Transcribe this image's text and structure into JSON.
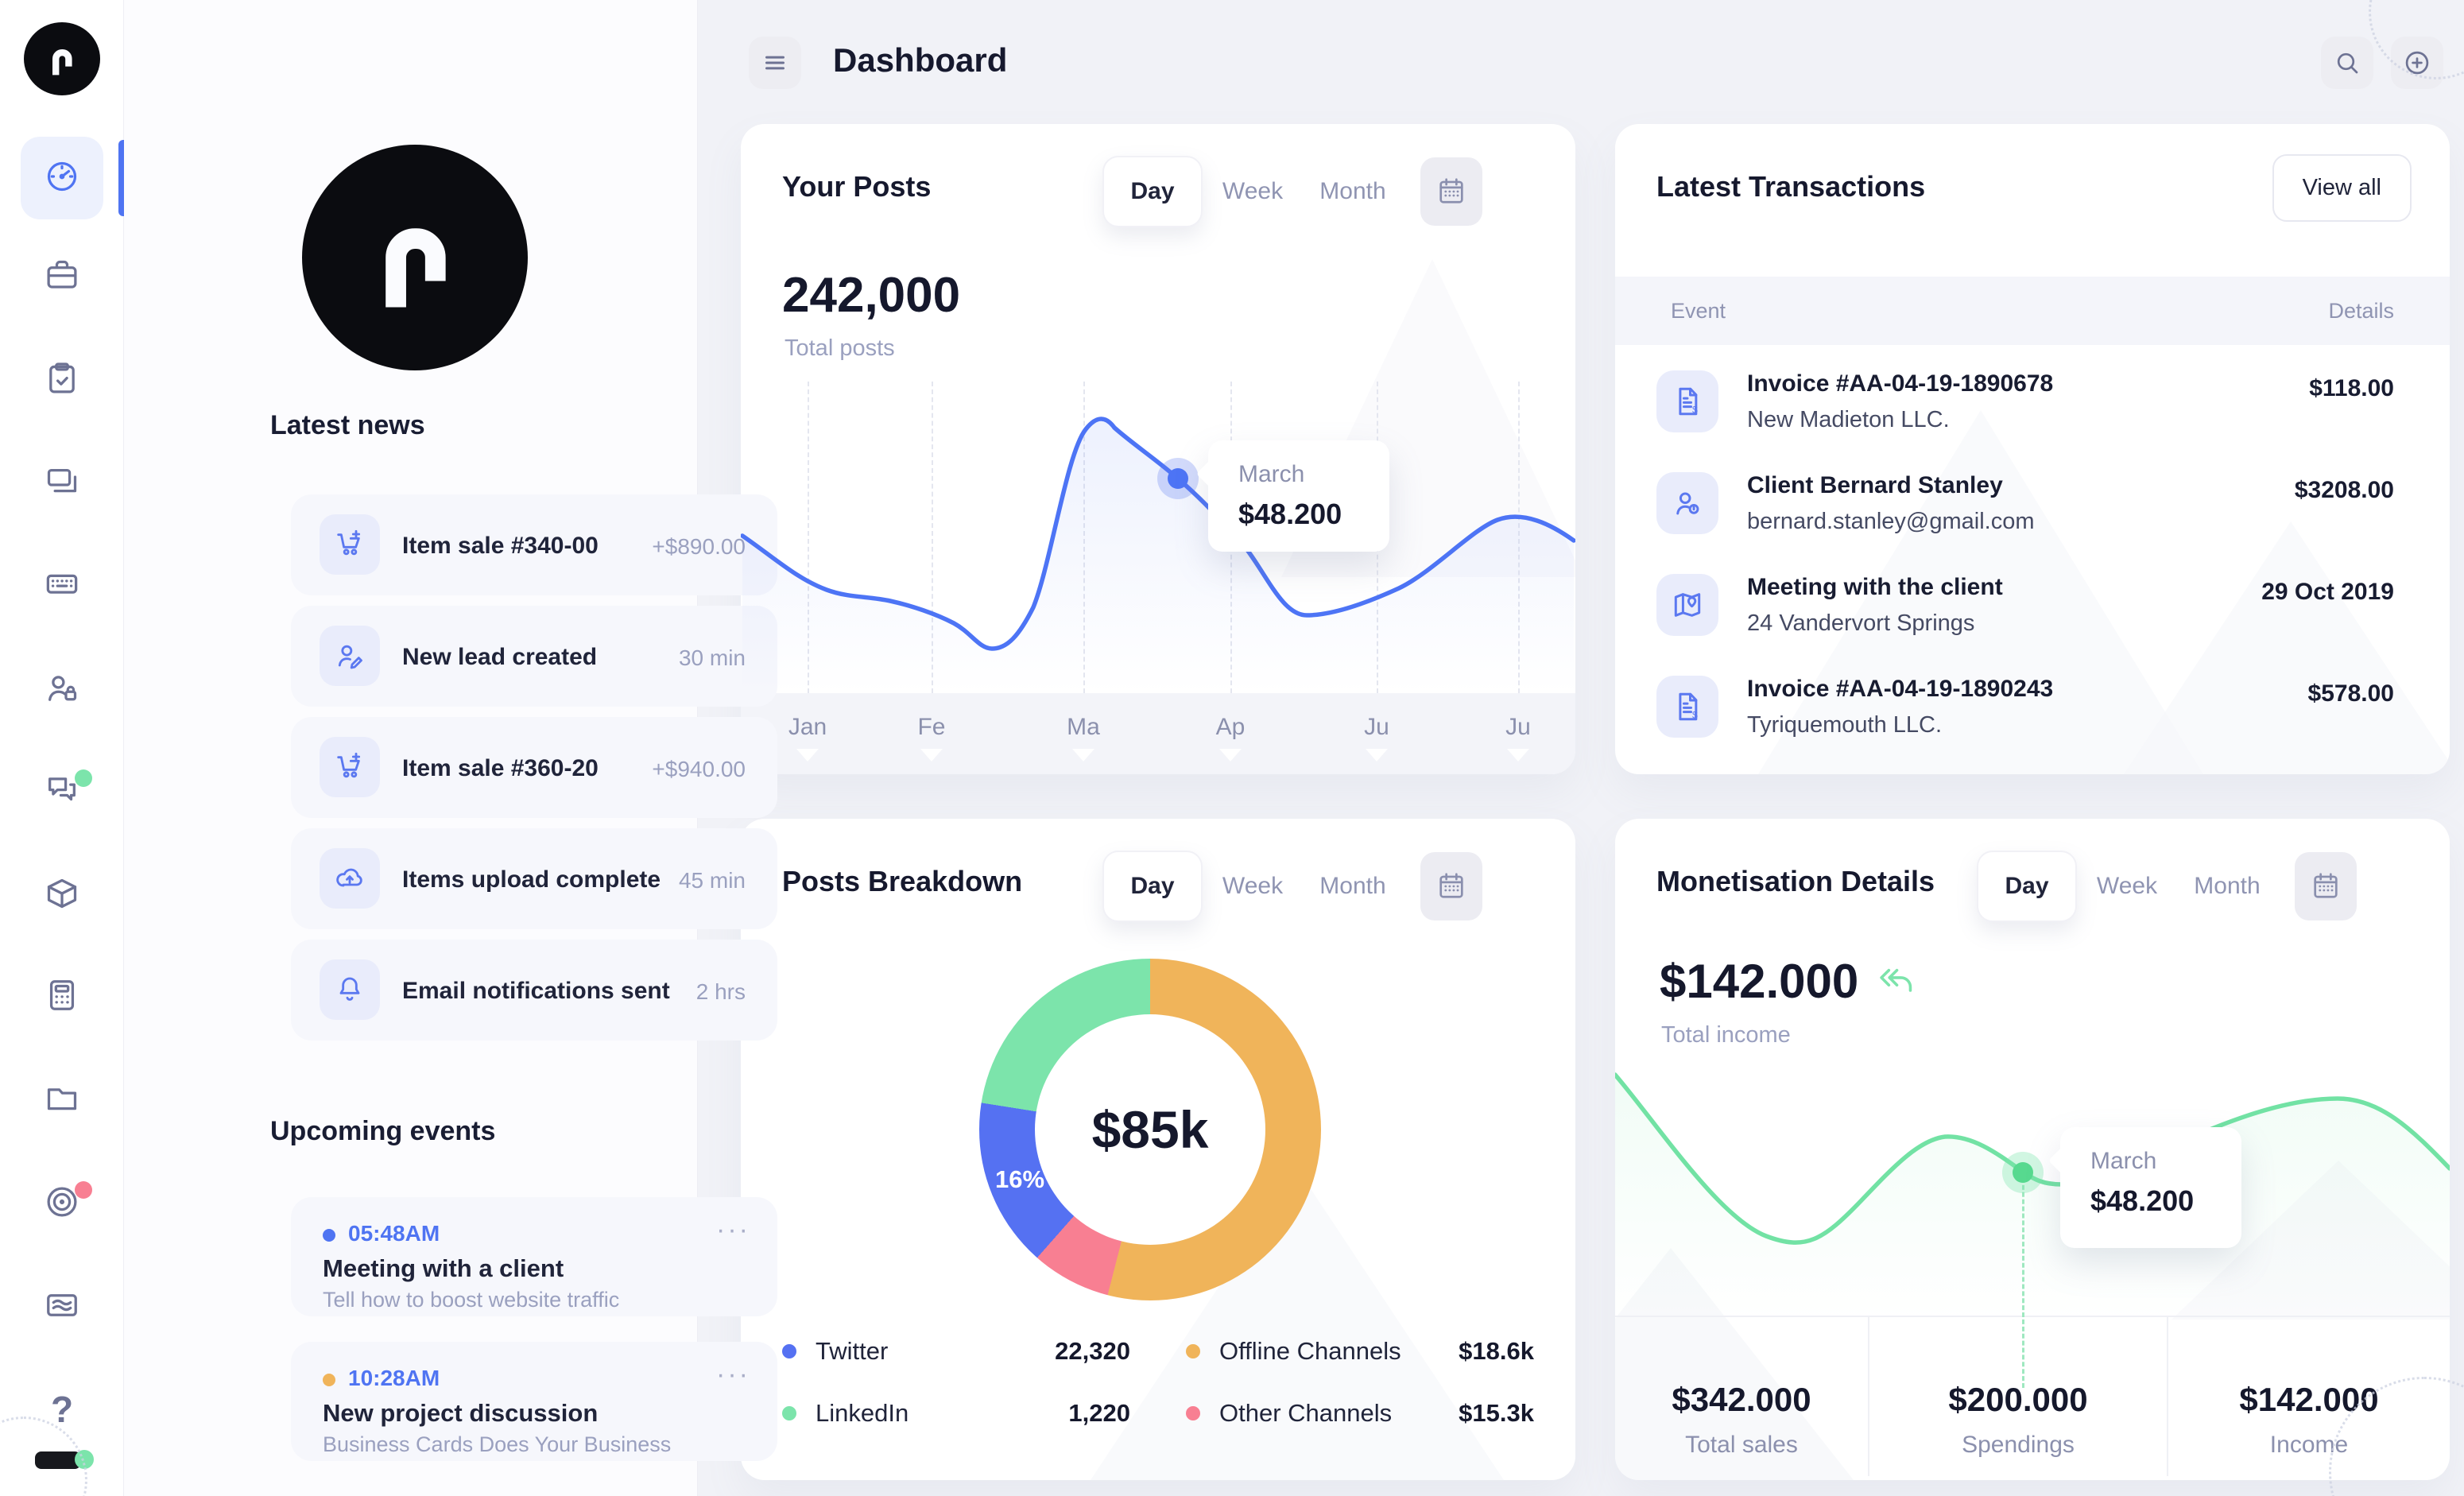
{
  "header": {
    "title": "Dashboard"
  },
  "sidebar": {
    "items": [
      {
        "id": "dashboard",
        "icon": "gauge",
        "active": true
      },
      {
        "id": "jobs",
        "icon": "briefcase"
      },
      {
        "id": "tasks",
        "icon": "clipboard-check"
      },
      {
        "id": "slides",
        "icon": "layers"
      },
      {
        "id": "keyboard",
        "icon": "keyboard"
      },
      {
        "id": "clients",
        "icon": "user-lock"
      },
      {
        "id": "messages",
        "icon": "chat",
        "badge": "#7ce4ab"
      },
      {
        "id": "products",
        "icon": "box"
      },
      {
        "id": "billing",
        "icon": "calculator"
      },
      {
        "id": "files",
        "icon": "folder"
      },
      {
        "id": "goals",
        "icon": "target",
        "badge": "#f87f92"
      },
      {
        "id": "newsletter",
        "icon": "mail-wave"
      },
      {
        "id": "help",
        "icon": "question"
      }
    ],
    "user": {
      "status_color": "#7ce4ab"
    }
  },
  "news": {
    "heading": "Latest news",
    "items": [
      {
        "icon": "cart-plus",
        "title": "Item sale #340-00",
        "meta": "+$890.00"
      },
      {
        "icon": "user-edit",
        "title": "New lead created",
        "meta": "30 min"
      },
      {
        "icon": "cart-plus",
        "title": "Item sale #360-20",
        "meta": "+$940.00"
      },
      {
        "icon": "cloud-upload",
        "title": "Items upload complete",
        "meta": "45 min"
      },
      {
        "icon": "bell",
        "title": "Email notifications sent",
        "meta": "2 hrs"
      }
    ]
  },
  "events": {
    "heading": "Upcoming events",
    "menu": "···",
    "items": [
      {
        "dot": "#4f74f2",
        "time": "05:48AM",
        "title": "Meeting with a client",
        "subtitle": "Tell how to boost website traffic"
      },
      {
        "dot": "#f0b45a",
        "time": "10:28AM",
        "title": "New project discussion",
        "subtitle": "Business Cards Does Your Business"
      }
    ]
  },
  "your_posts": {
    "title": "Your Posts",
    "tabs": [
      "Day",
      "Week",
      "Month"
    ],
    "active_tab": "Day",
    "total": "242,000",
    "total_label": "Total posts",
    "months": [
      "Jan",
      "Fe",
      "Ma",
      "Ap",
      "Ju",
      "Ju"
    ],
    "tooltip": {
      "label": "March",
      "value": "$48.200"
    }
  },
  "transactions": {
    "title": "Latest Transactions",
    "view_all": "View all",
    "columns": {
      "event": "Event",
      "details": "Details"
    },
    "rows": [
      {
        "icon": "invoice",
        "title": "Invoice #AA-04-19-1890678",
        "subtitle": "New Madieton LLC.",
        "value": "$118.00"
      },
      {
        "icon": "user-badge",
        "title": "Client Bernard Stanley",
        "subtitle": "bernard.stanley@gmail.com",
        "value": "$3208.00"
      },
      {
        "icon": "map-pin",
        "title": "Meeting with the client",
        "subtitle": "24 Vandervort Springs",
        "value": "29 Oct 2019"
      },
      {
        "icon": "invoice",
        "title": "Invoice #AA-04-19-1890243",
        "subtitle": "Tyriquemouth LLC.",
        "value": "$578.00"
      }
    ]
  },
  "breakdown": {
    "title": "Posts Breakdown",
    "tabs": [
      "Day",
      "Week",
      "Month"
    ],
    "active_tab": "Day",
    "center_value": "$85k",
    "slice_label": "16%",
    "legend": [
      {
        "color": "#5571f2",
        "label": "Twitter",
        "value": "22,320"
      },
      {
        "color": "#f0b45a",
        "label": "Offline Channels",
        "value": "$18.6k"
      },
      {
        "color": "#7ce4ab",
        "label": "LinkedIn",
        "value": "1,220"
      },
      {
        "color": "#f87f92",
        "label": "Other Channels",
        "value": "$15.3k"
      }
    ]
  },
  "monetisation": {
    "title": "Monetisation Details",
    "tabs": [
      "Day",
      "Week",
      "Month"
    ],
    "active_tab": "Day",
    "income": "$142.000",
    "income_label": "Total income",
    "tooltip": {
      "label": "March",
      "value": "$48.200"
    },
    "stats": [
      {
        "value": "$342.000",
        "label": "Total sales"
      },
      {
        "value": "$200.000",
        "label": "Spendings"
      },
      {
        "value": "$142.000",
        "label": "Income"
      }
    ]
  },
  "chart_data": [
    {
      "type": "line",
      "title": "Your Posts",
      "total": "242,000",
      "total_label": "Total posts",
      "x_labels": [
        "Jan",
        "Fe",
        "Ma",
        "Ap",
        "Ju",
        "Ju"
      ],
      "series": [
        {
          "name": "posts",
          "values_estimated": [
            52,
            30,
            85,
            55,
            35,
            75
          ]
        }
      ],
      "highlight": {
        "label": "March",
        "value": "$48.200"
      },
      "line_color": "#4d74f5",
      "grid": "dashed-vertical",
      "legend_shown": false
    },
    {
      "type": "pie",
      "title": "Posts Breakdown",
      "center_label": "$85k",
      "slices": [
        {
          "label": "Offline Channels",
          "pct_estimated": 54,
          "color": "#f0b45a",
          "value": "$18.6k"
        },
        {
          "label": "Other Channels",
          "pct_estimated": 7.5,
          "color": "#f87f92",
          "value": "$15.3k"
        },
        {
          "label": "Twitter",
          "pct_estimated": 16,
          "color": "#5571f2",
          "value": "22,320",
          "pct_label": "16%"
        },
        {
          "label": "LinkedIn",
          "pct_estimated": 22.5,
          "color": "#7ce4ab",
          "value": "1,220"
        }
      ],
      "legend_position": "bottom"
    },
    {
      "type": "line",
      "title": "Monetisation Details",
      "total_income": "$142.000",
      "series": [
        {
          "name": "income",
          "values_estimated": [
            88,
            40,
            30,
            55,
            62,
            48,
            60,
            82,
            70
          ]
        }
      ],
      "highlight": {
        "label": "March",
        "value": "$48.200"
      },
      "line_color": "#72e2a4",
      "footer_stats": [
        {
          "value": "$342.000",
          "label": "Total sales"
        },
        {
          "value": "$200.000",
          "label": "Spendings"
        },
        {
          "value": "$142.000",
          "label": "Income"
        }
      ]
    }
  ]
}
